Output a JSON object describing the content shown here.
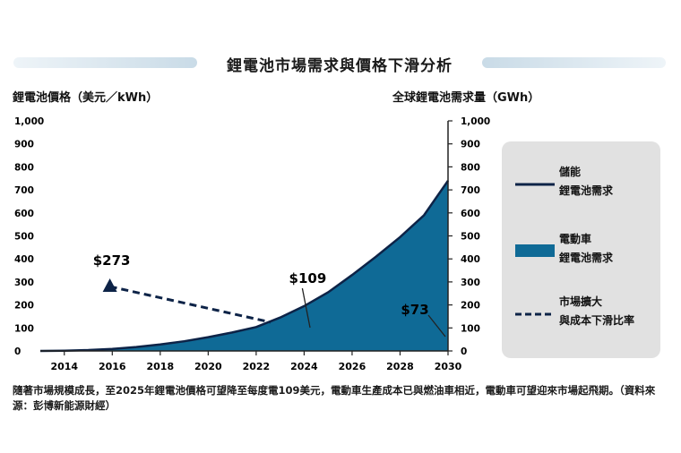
{
  "title": "鋰電池市場需求與價格下滑分析",
  "chart_data": {
    "type": "area",
    "title": "鋰電池市場需求與價格下滑分析",
    "ylabel_left": "鋰電池價格（美元／kWh）",
    "ylabel_right": "全球鋰電池需求量（GWh）",
    "x_ticks": [
      2014,
      2016,
      2018,
      2020,
      2022,
      2024,
      2026,
      2028,
      2030
    ],
    "y_ticks": [
      0,
      100,
      200,
      300,
      400,
      500,
      600,
      700,
      800,
      900,
      1000
    ],
    "y_tick_labels": [
      "0",
      "100",
      "200",
      "300",
      "400",
      "500",
      "600",
      "700",
      "800",
      "900",
      "1,000"
    ],
    "xlim": [
      2013,
      2030
    ],
    "ylim": [
      0,
      1000
    ],
    "grid": false,
    "legend_position": "right",
    "series": [
      {
        "name": "儲能鋰電池需求",
        "type": "line",
        "color": "#0d2347",
        "x": [
          2013,
          2014,
          2015,
          2016,
          2017,
          2018,
          2019,
          2020,
          2021,
          2022,
          2023,
          2024,
          2025,
          2026,
          2027,
          2028,
          2029,
          2030
        ],
        "y": [
          0,
          1,
          4,
          9,
          17,
          28,
          42,
          60,
          80,
          104,
          145,
          195,
          255,
          330,
          410,
          495,
          590,
          740
        ]
      },
      {
        "name": "電動車鋰電池需求",
        "type": "area",
        "color": "#0f6a96",
        "x": [
          2013,
          2014,
          2015,
          2016,
          2017,
          2018,
          2019,
          2020,
          2021,
          2022,
          2023,
          2024,
          2025,
          2026,
          2027,
          2028,
          2029,
          2030
        ],
        "y": [
          0,
          1,
          4,
          9,
          17,
          28,
          42,
          60,
          80,
          104,
          145,
          195,
          255,
          330,
          410,
          495,
          590,
          740
        ]
      },
      {
        "name": "市場擴大與成本下滑比率",
        "type": "dashed",
        "color": "#0d2347",
        "x": [
          2015.9,
          2022.6
        ],
        "y": [
          280,
          125
        ]
      }
    ],
    "annotations": [
      {
        "text": "$273",
        "x": 2015.9,
        "y": 280
      },
      {
        "text": "$109",
        "x": 2024,
        "y": 200
      },
      {
        "text": "$73",
        "x": 2030,
        "y": 40
      }
    ]
  },
  "legend": [
    {
      "line1": "儲能",
      "line2": "鋰電池需求",
      "symbol": "line"
    },
    {
      "line1": "電動車",
      "line2": "鋰電池需求",
      "symbol": "block"
    },
    {
      "line1": "市場擴大",
      "line2": "與成本下滑比率",
      "symbol": "dashed"
    }
  ],
  "caption": "隨著市場規模成長，至2025年鋰電池價格可望降至每度電109美元，電動車生產成本已與燃油車相近，電動車可望迎來市場起飛期。（資料來源：彭博新能源財經）",
  "colors": {
    "area": "#0f6a96",
    "line": "#0d2347",
    "legend_bg": "#e1e1e1"
  }
}
